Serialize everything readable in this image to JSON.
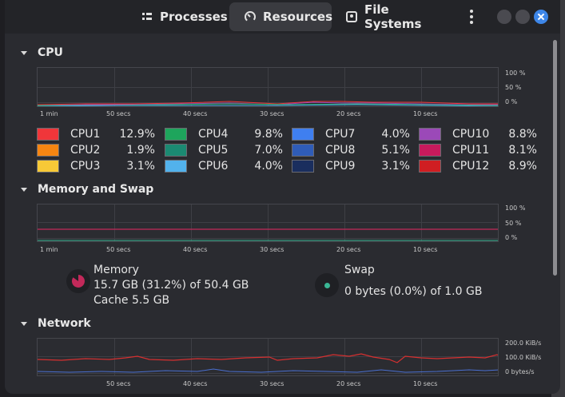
{
  "tabs": [
    {
      "label": "Processes",
      "icon": "list-icon"
    },
    {
      "label": "Resources",
      "icon": "gauge-icon"
    },
    {
      "label": "File Systems",
      "icon": "disk-icon"
    }
  ],
  "cpu": {
    "title": "CPU",
    "y_labels": [
      "100 %",
      "50 %",
      "0 %"
    ],
    "x_labels": [
      "1 min",
      "50 secs",
      "40 secs",
      "30 secs",
      "20 secs",
      "10 secs"
    ],
    "items": [
      {
        "name": "CPU1",
        "value": "12.9%",
        "color": "#f0363a"
      },
      {
        "name": "CPU2",
        "value": "1.9%",
        "color": "#f58512"
      },
      {
        "name": "CPU3",
        "value": "3.1%",
        "color": "#f7c937"
      },
      {
        "name": "CPU4",
        "value": "9.8%",
        "color": "#1ea55c"
      },
      {
        "name": "CPU5",
        "value": "7.0%",
        "color": "#1b8a72"
      },
      {
        "name": "CPU6",
        "value": "4.0%",
        "color": "#52b2ec"
      },
      {
        "name": "CPU7",
        "value": "4.0%",
        "color": "#3f7ff0"
      },
      {
        "name": "CPU8",
        "value": "5.1%",
        "color": "#2f5cb8"
      },
      {
        "name": "CPU9",
        "value": "3.1%",
        "color": "#1a2e5e"
      },
      {
        "name": "CPU10",
        "value": "8.8%",
        "color": "#9b49b8"
      },
      {
        "name": "CPU11",
        "value": "8.1%",
        "color": "#c81a5c"
      },
      {
        "name": "CPU12",
        "value": "8.9%",
        "color": "#d01e22"
      }
    ]
  },
  "memory": {
    "title": "Memory and Swap",
    "y_labels": [
      "100 %",
      "50 %",
      "0 %"
    ],
    "x_labels": [
      "1 min",
      "50 secs",
      "40 secs",
      "30 secs",
      "20 secs",
      "10 secs"
    ],
    "mem_label": "Memory",
    "mem_usage": "15.7 GB (31.2%) of 50.4 GB",
    "mem_cache": "Cache 5.5 GB",
    "mem_color": "#c2295a",
    "swap_label": "Swap",
    "swap_usage": "0 bytes (0.0%) of 1.0 GB",
    "swap_color": "#3ab795"
  },
  "network": {
    "title": "Network",
    "y_labels": [
      "200.0 KiB/s",
      "100.0 KiB/s",
      "0 bytes/s"
    ],
    "x_labels": [
      "50 secs",
      "40 secs",
      "30 secs",
      "20 secs",
      "10 secs"
    ]
  }
}
